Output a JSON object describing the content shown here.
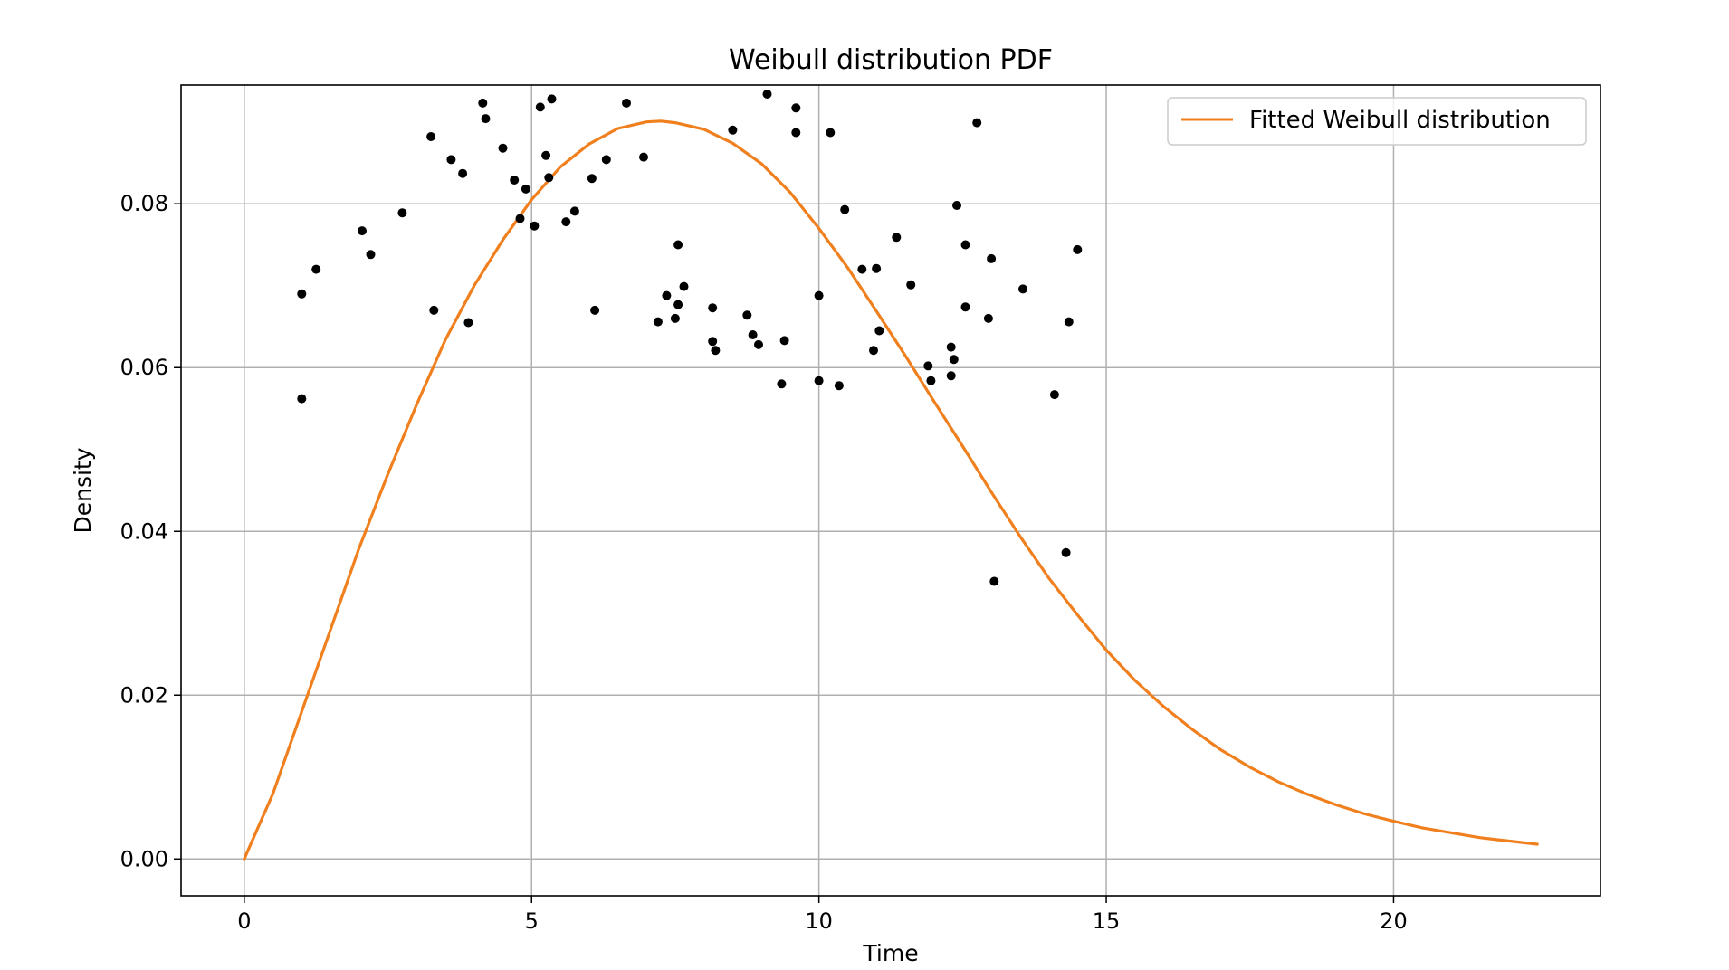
{
  "chart_data": {
    "type": "scatter",
    "title": "Weibull distribution PDF",
    "xlabel": "Time",
    "ylabel": "Density",
    "xlim": [
      -1.1,
      23.6
    ],
    "ylim": [
      -0.0045,
      0.0945
    ],
    "x_ticks": [
      0,
      5,
      10,
      15,
      20
    ],
    "y_ticks": [
      0.0,
      0.02,
      0.04,
      0.06,
      0.08
    ],
    "x_tick_labels": [
      "0",
      "5",
      "10",
      "15",
      "20"
    ],
    "y_tick_labels": [
      "0.00",
      "0.02",
      "0.04",
      "0.06",
      "0.08"
    ],
    "grid": true,
    "legend_position": "top-right",
    "colors": {
      "line": "#f07f1e",
      "points": "#000000",
      "grid": "#b0b0b0"
    },
    "series": [
      {
        "name": "Fitted Weibull distribution",
        "kind": "line",
        "x": [
          0,
          0.5,
          1,
          1.5,
          2,
          2.5,
          3,
          3.5,
          4,
          4.5,
          5,
          5.5,
          6,
          6.5,
          7,
          7.25,
          7.5,
          8,
          8.5,
          9,
          9.5,
          10,
          10.5,
          11,
          11.5,
          12,
          12.5,
          13,
          13.5,
          14,
          14.5,
          15,
          15.5,
          16,
          16.5,
          17,
          17.5,
          18,
          18.5,
          19,
          19.5,
          20,
          20.5,
          21,
          21.5,
          22,
          22.5
        ],
        "y": [
          0,
          0.008,
          0.018,
          0.028,
          0.038,
          0.047,
          0.0555,
          0.0634,
          0.07,
          0.0756,
          0.0805,
          0.0845,
          0.0873,
          0.0892,
          0.09,
          0.0901,
          0.0899,
          0.0891,
          0.0874,
          0.0849,
          0.0814,
          0.077,
          0.0722,
          0.0669,
          0.0615,
          0.0559,
          0.0504,
          0.0448,
          0.0394,
          0.0343,
          0.0298,
          0.0255,
          0.0218,
          0.0186,
          0.0158,
          0.0133,
          0.0112,
          0.0094,
          0.0079,
          0.0066,
          0.0055,
          0.0046,
          0.0038,
          0.0032,
          0.0026,
          0.0022,
          0.0018
        ]
      },
      {
        "kind": "scatter",
        "x": [
          1.0,
          1.0,
          1.25,
          2.05,
          2.2,
          2.75,
          3.25,
          3.3,
          3.6,
          3.8,
          3.9,
          4.15,
          4.2,
          4.5,
          4.7,
          4.8,
          4.9,
          5.05,
          5.15,
          5.25,
          5.3,
          5.35,
          5.6,
          5.75,
          6.05,
          6.1,
          6.3,
          6.65,
          6.95,
          7.2,
          7.35,
          7.5,
          7.55,
          7.55,
          7.65,
          8.15,
          8.15,
          8.2,
          8.5,
          8.75,
          8.85,
          8.95,
          9.1,
          9.35,
          9.4,
          9.6,
          9.6,
          10.0,
          10.0,
          10.2,
          10.35,
          10.45,
          10.75,
          10.95,
          11.0,
          11.05,
          11.35,
          11.6,
          11.9,
          11.95,
          12.3,
          12.3,
          12.35,
          12.4,
          12.55,
          12.55,
          12.75,
          12.95,
          13.0,
          13.05,
          13.55,
          14.1,
          14.3,
          14.35,
          14.5
        ],
        "y": [
          0.0562,
          0.069,
          0.072,
          0.0767,
          0.0738,
          0.0789,
          0.0882,
          0.067,
          0.0854,
          0.0837,
          0.0655,
          0.0923,
          0.0904,
          0.0868,
          0.0829,
          0.0782,
          0.0818,
          0.0773,
          0.0918,
          0.0859,
          0.0832,
          0.0928,
          0.0778,
          0.0791,
          0.0831,
          0.067,
          0.0854,
          0.0923,
          0.0857,
          0.0656,
          0.0688,
          0.066,
          0.0677,
          0.075,
          0.0699,
          0.0673,
          0.0632,
          0.0621,
          0.089,
          0.0664,
          0.064,
          0.0628,
          0.0934,
          0.058,
          0.0633,
          0.0887,
          0.0917,
          0.0688,
          0.0584,
          0.0887,
          0.0578,
          0.0793,
          0.072,
          0.0621,
          0.0721,
          0.0645,
          0.0759,
          0.0701,
          0.0602,
          0.0584,
          0.0625,
          0.059,
          0.061,
          0.0798,
          0.075,
          0.0674,
          0.0899,
          0.066,
          0.0733,
          0.0339,
          0.0696,
          0.0567,
          0.0374,
          0.0656,
          0.0744
        ]
      }
    ]
  }
}
